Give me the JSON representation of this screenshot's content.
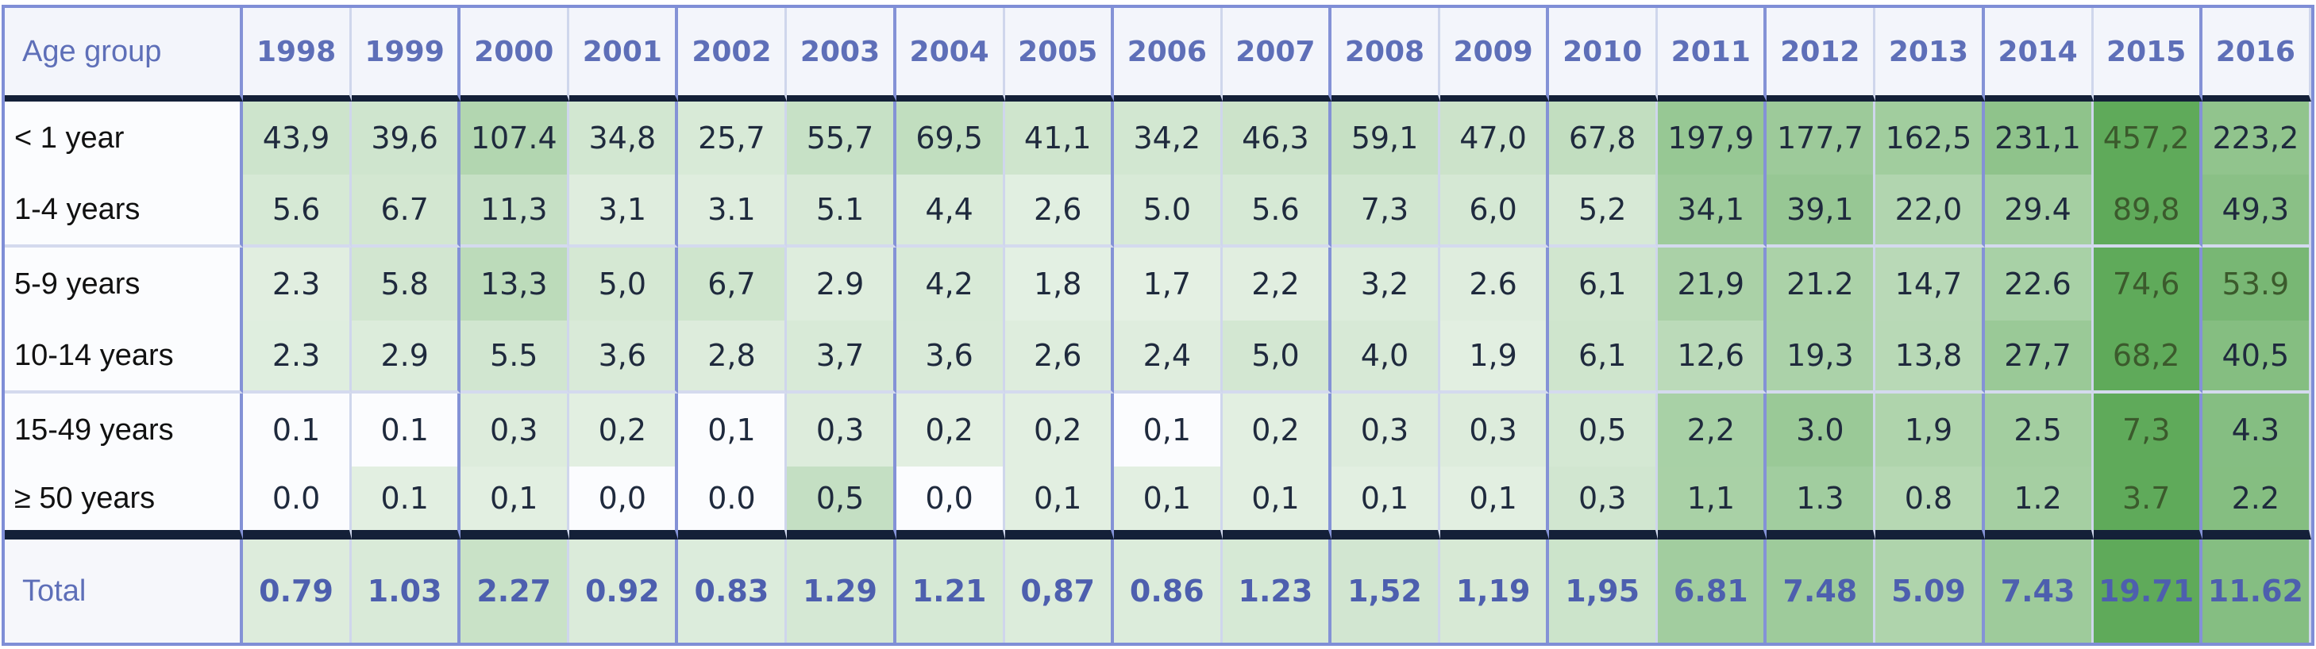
{
  "table": {
    "age_header": "Age group",
    "years": [
      "1998",
      "1999",
      "2000",
      "2001",
      "2002",
      "2003",
      "2004",
      "2005",
      "2006",
      "2007",
      "2008",
      "2009",
      "2010",
      "2011",
      "2012",
      "2013",
      "2014",
      "2015",
      "2016"
    ],
    "rows": [
      {
        "label": "< 1 year",
        "values": [
          "43,9",
          "39,6",
          "107.4",
          "34,8",
          "25,7",
          "55,7",
          "69,5",
          "41,1",
          "34,2",
          "46,3",
          "59,1",
          "47,0",
          "67,8",
          "197,9",
          "177,7",
          "162,5",
          "231,1",
          "457,2",
          "223,2"
        ]
      },
      {
        "label": "1-4 years",
        "values": [
          "5.6",
          "6.7",
          "11,3",
          "3,1",
          "3.1",
          "5.1",
          "4,4",
          "2,6",
          "5.0",
          "5.6",
          "7,3",
          "6,0",
          "5,2",
          "34,1",
          "39,1",
          "22,0",
          "29.4",
          "89,8",
          "49,3"
        ]
      },
      {
        "label": "5-9 years",
        "values": [
          "2.3",
          "5.8",
          "13,3",
          "5,0",
          "6,7",
          "2.9",
          "4,2",
          "1,8",
          "1,7",
          "2,2",
          "3,2",
          "2.6",
          "6,1",
          "21,9",
          "21.2",
          "14,7",
          "22.6",
          "74,6",
          "53.9"
        ]
      },
      {
        "label": "10-14 years",
        "values": [
          "2.3",
          "2.9",
          "5.5",
          "3,6",
          "2,8",
          "3,7",
          "3,6",
          "2,6",
          "2,4",
          "5,0",
          "4,0",
          "1,9",
          "6,1",
          "12,6",
          "19,3",
          "13,8",
          "27,7",
          "68,2",
          "40,5"
        ]
      },
      {
        "label": "15-49 years",
        "values": [
          "0.1",
          "0.1",
          "0,3",
          "0,2",
          "0,1",
          "0,3",
          "0,2",
          "0,2",
          "0,1",
          "0,2",
          "0,3",
          "0,3",
          "0,5",
          "2,2",
          "3.0",
          "1,9",
          "2.5",
          "7,3",
          "4.3"
        ]
      },
      {
        "label": "≥ 50 years",
        "values": [
          "0.0",
          "0.1",
          "0,1",
          "0,0",
          "0.0",
          "0,5",
          "0,0",
          "0,1",
          "0,1",
          "0,1",
          "0,1",
          "0,1",
          "0,3",
          "1,1",
          "1.3",
          "0.8",
          "1.2",
          "3.7",
          "2.2"
        ]
      }
    ],
    "total": {
      "label": "Total",
      "values": [
        "0.79",
        "1.03",
        "2.27",
        "0.92",
        "0.83",
        "1.29",
        "1.21",
        "0,87",
        "0.86",
        "1.23",
        "1,52",
        "1,19",
        "1,95",
        "6.81",
        "7.48",
        "5.09",
        "7.43",
        "19.71",
        "11.62"
      ]
    }
  }
}
